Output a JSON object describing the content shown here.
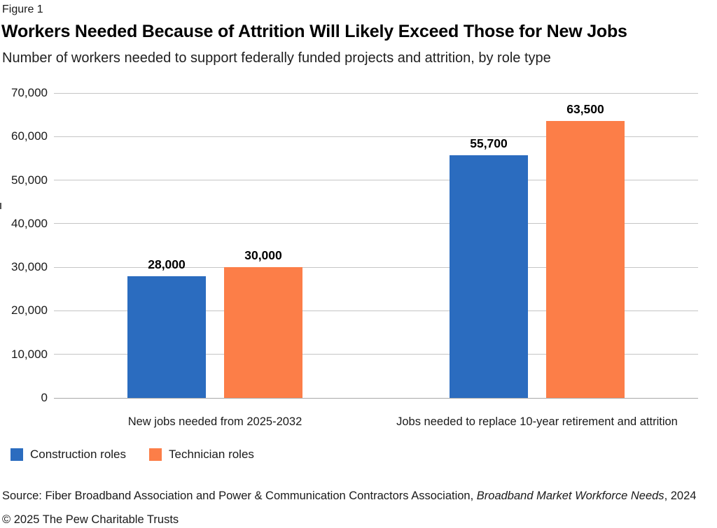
{
  "figure_label": "Figure 1",
  "title": "Workers Needed Because of Attrition Will Likely Exceed Those for New Jobs",
  "subtitle": "Number of workers needed to support federally funded projects and attrition, by role type",
  "chart_data": {
    "type": "bar",
    "title": "Workers Needed Because of Attrition Will Likely Exceed Those for New Jobs",
    "subtitle": "Number of workers needed to support federally funded projects and attrition, by role type",
    "categories": [
      "New jobs needed from 2025-2032",
      "Jobs needed to replace 10-year retirement and attrition"
    ],
    "series": [
      {
        "name": "Construction roles",
        "color": "#2b6cbf",
        "values": [
          28000,
          55700
        ],
        "value_labels": [
          "28,000",
          "55,700"
        ]
      },
      {
        "name": "Technician roles",
        "color": "#fc7e48",
        "values": [
          30000,
          63500
        ],
        "value_labels": [
          "30,000",
          "63,500"
        ]
      }
    ],
    "xlabel": "",
    "ylabel": "",
    "ylim": [
      0,
      70000
    ],
    "ytick_interval": 10000,
    "ytick_labels": [
      "0",
      "10,000",
      "20,000",
      "30,000",
      "40,000",
      "50,000",
      "60,000",
      "70,000"
    ],
    "grid": true,
    "legend_position": "bottom-left"
  },
  "legend": {
    "items": [
      {
        "label": "Construction roles",
        "color": "#2b6cbf"
      },
      {
        "label": "Technician roles",
        "color": "#fc7e48"
      }
    ]
  },
  "footer": {
    "source_prefix": "Source: Fiber Broadband Association and Power & Communication Contractors Association, ",
    "source_italic": "Broadband Market Workforce Needs",
    "source_suffix": ", 2024",
    "copyright": "© 2025 The Pew Charitable Trusts"
  },
  "colors": {
    "construction_blue": "#2b6cbf",
    "technician_orange": "#fc7e48",
    "gridline": "#c5c5c5",
    "baseline": "#a9a9a9",
    "text": "#1a1a1a"
  }
}
